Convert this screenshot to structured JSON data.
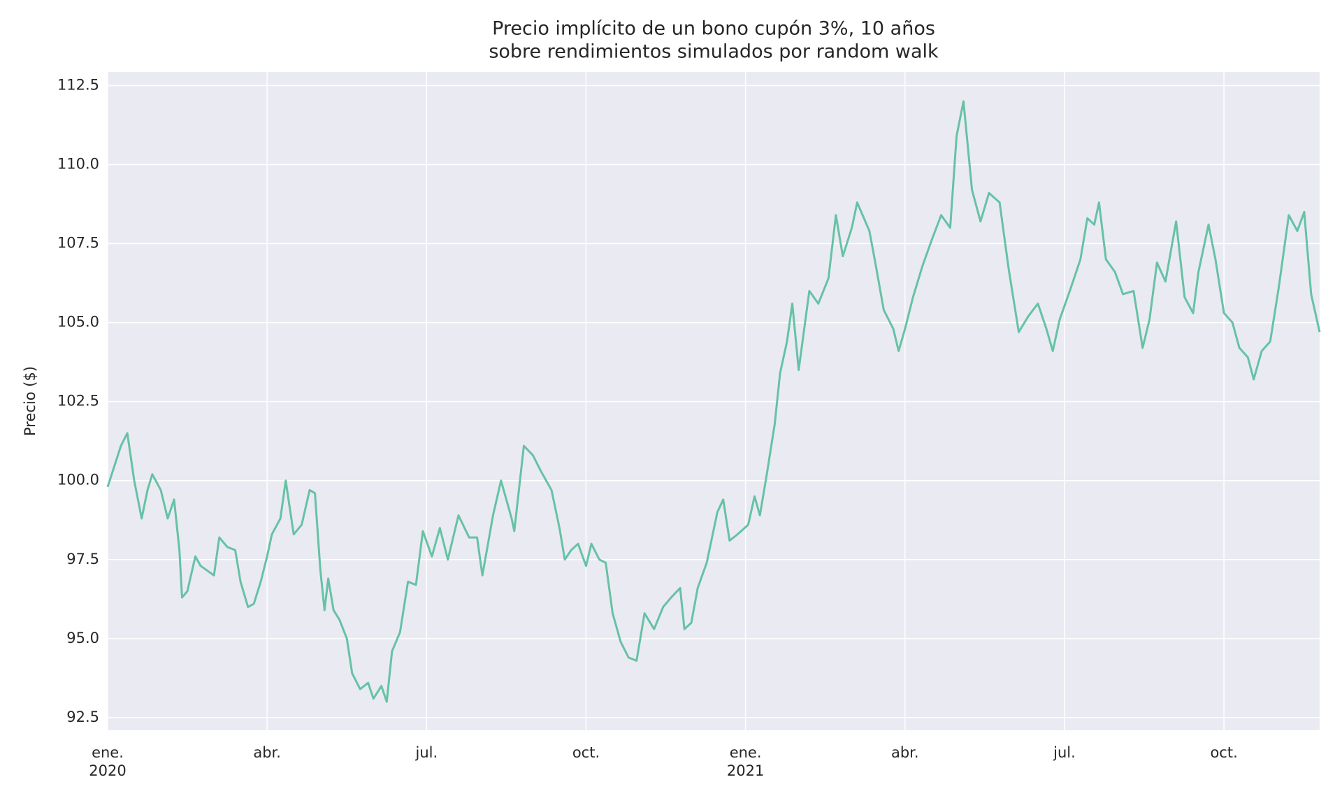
{
  "chart_data": {
    "type": "line",
    "title": "Precio implícito de un bono cupón 3%, 10 años",
    "subtitle": "sobre rendimientos simulados por random walk",
    "y_label": "Precio ($)",
    "color": "#66c2a5",
    "grid": true,
    "xlim": [
      0,
      22.8
    ],
    "xticks": [
      {
        "value": 0,
        "label": "ene."
      },
      {
        "value": 3,
        "label": "abr."
      },
      {
        "value": 6,
        "label": "jul."
      },
      {
        "value": 9,
        "label": "oct."
      },
      {
        "value": 12,
        "label": "ene."
      },
      {
        "value": 15,
        "label": "abr."
      },
      {
        "value": 18,
        "label": "jul."
      },
      {
        "value": 21,
        "label": "oct."
      }
    ],
    "xtick_years": [
      {
        "value": 0,
        "label": "2020"
      },
      {
        "value": 12,
        "label": "2021"
      }
    ],
    "ylim": [
      92.1,
      112.93
    ],
    "yticks": [
      92.5,
      {
        "value": 95,
        "label": "95.0"
      },
      97.5,
      {
        "value": 100,
        "label": "100.0"
      },
      102.5,
      {
        "value": 105,
        "label": "105.0"
      },
      107.5,
      {
        "value": 110,
        "label": "110.0"
      },
      112.5
    ],
    "x": [
      0,
      0.25,
      0.37,
      0.5,
      0.64,
      0.75,
      0.84,
      1.0,
      1.13,
      1.25,
      1.35,
      1.4,
      1.5,
      1.65,
      1.75,
      2.0,
      2.1,
      2.25,
      2.4,
      2.5,
      2.64,
      2.75,
      2.88,
      3.0,
      3.09,
      3.25,
      3.35,
      3.5,
      3.65,
      3.8,
      3.9,
      4.0,
      4.08,
      4.15,
      4.25,
      4.36,
      4.5,
      4.6,
      4.75,
      4.9,
      5.0,
      5.15,
      5.25,
      5.35,
      5.5,
      5.65,
      5.8,
      5.93,
      6.1,
      6.25,
      6.4,
      6.6,
      6.8,
      6.95,
      7.05,
      7.25,
      7.4,
      7.6,
      7.65,
      7.83,
      8.0,
      8.15,
      8.35,
      8.5,
      8.6,
      8.72,
      8.85,
      9.0,
      9.1,
      9.25,
      9.37,
      9.5,
      9.65,
      9.8,
      9.95,
      10.1,
      10.28,
      10.45,
      10.6,
      10.77,
      10.85,
      10.98,
      11.1,
      11.27,
      11.47,
      11.58,
      11.7,
      11.85,
      12.05,
      12.17,
      12.27,
      12.4,
      12.55,
      12.65,
      12.78,
      12.88,
      13.0,
      13.2,
      13.37,
      13.56,
      13.7,
      13.83,
      14.0,
      14.1,
      14.33,
      14.43,
      14.6,
      14.78,
      14.88,
      15.0,
      15.15,
      15.33,
      15.5,
      15.68,
      15.85,
      15.97,
      16.1,
      16.26,
      16.42,
      16.58,
      16.78,
      16.95,
      17.14,
      17.32,
      17.5,
      17.66,
      17.78,
      17.91,
      18.1,
      18.3,
      18.43,
      18.56,
      18.65,
      18.78,
      18.95,
      19.1,
      19.3,
      19.47,
      19.6,
      19.74,
      19.9,
      20.1,
      20.26,
      20.42,
      20.52,
      20.71,
      20.84,
      21.0,
      21.16,
      21.29,
      21.45,
      21.56,
      21.71,
      21.87,
      22.03,
      22.22,
      22.38,
      22.51,
      22.64,
      22.8
    ],
    "values": [
      99.8,
      101.1,
      101.5,
      100.0,
      98.8,
      99.7,
      100.2,
      99.7,
      98.8,
      99.4,
      97.8,
      96.3,
      96.5,
      97.6,
      97.3,
      97.0,
      98.2,
      97.9,
      97.8,
      96.8,
      96.0,
      96.1,
      96.8,
      97.6,
      98.3,
      98.8,
      100.0,
      98.3,
      98.6,
      99.7,
      99.6,
      97.2,
      95.9,
      96.9,
      95.9,
      95.6,
      95.0,
      93.9,
      93.4,
      93.6,
      93.1,
      93.5,
      93.0,
      94.6,
      95.2,
      96.8,
      96.7,
      98.4,
      97.6,
      98.5,
      97.5,
      98.9,
      98.2,
      98.2,
      97.0,
      98.9,
      100.0,
      98.8,
      98.4,
      101.1,
      100.8,
      100.3,
      99.7,
      98.5,
      97.5,
      97.8,
      98.0,
      97.3,
      98.0,
      97.5,
      97.4,
      95.8,
      94.9,
      94.4,
      94.3,
      95.8,
      95.3,
      96.0,
      96.3,
      96.6,
      95.3,
      95.5,
      96.6,
      97.4,
      99.0,
      99.4,
      98.1,
      98.3,
      98.6,
      99.5,
      98.9,
      100.2,
      101.8,
      103.4,
      104.4,
      105.6,
      103.5,
      106.0,
      105.6,
      106.4,
      108.4,
      107.1,
      108.0,
      108.8,
      107.9,
      107.0,
      105.4,
      104.8,
      104.1,
      104.8,
      105.8,
      106.8,
      107.6,
      108.4,
      108.0,
      110.9,
      112.0,
      109.2,
      108.2,
      109.1,
      108.8,
      106.7,
      104.7,
      105.2,
      105.6,
      104.8,
      104.1,
      105.1,
      106.0,
      107.0,
      108.3,
      108.1,
      108.8,
      107.0,
      106.6,
      105.9,
      106.0,
      104.2,
      105.1,
      106.9,
      106.3,
      108.2,
      105.8,
      105.3,
      106.6,
      108.1,
      107.0,
      105.3,
      105.0,
      104.2,
      103.9,
      103.2,
      104.1,
      104.4,
      106.1,
      108.4,
      107.9,
      108.5,
      105.9,
      104.7
    ]
  }
}
